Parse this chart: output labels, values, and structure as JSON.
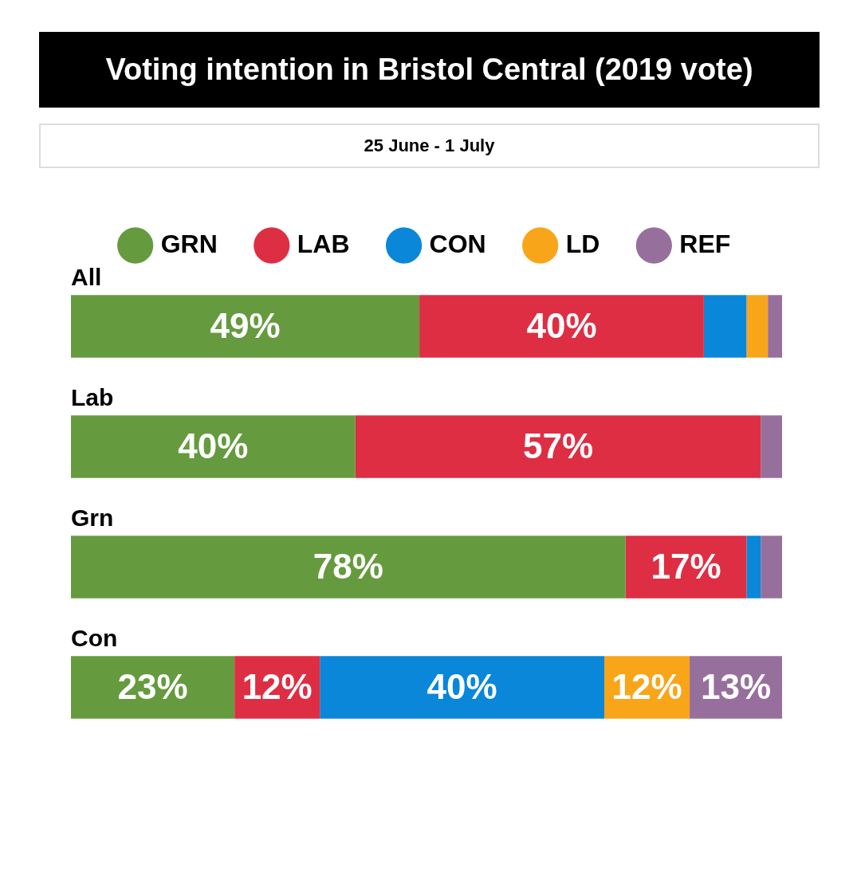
{
  "chart_data": {
    "type": "bar",
    "orientation": "horizontal",
    "stacked": true,
    "title": "Voting intention in Bristol Central (2019 vote)",
    "subtitle": "25 June - 1 July",
    "categories": [
      "All",
      "Lab",
      "Grn",
      "Con"
    ],
    "xlim": [
      0,
      100
    ],
    "tick_labels": false,
    "grid": false,
    "legend": "top",
    "series": [
      {
        "name": "GRN",
        "color": "#659b3e",
        "values": [
          49,
          40,
          78,
          23
        ],
        "value_labels": [
          "49%",
          "40%",
          "78%",
          "23%"
        ]
      },
      {
        "name": "LAB",
        "color": "#de2e43",
        "values": [
          40,
          57,
          17,
          12
        ],
        "value_labels": [
          "40%",
          "57%",
          "17%",
          "12%"
        ]
      },
      {
        "name": "CON",
        "color": "#0a87d9",
        "values": [
          6,
          null,
          2,
          40
        ],
        "value_labels": [
          null,
          null,
          null,
          "40%"
        ]
      },
      {
        "name": "LD",
        "color": "#f9a51a",
        "values": [
          3,
          null,
          null,
          12
        ],
        "value_labels": [
          null,
          null,
          null,
          "12%"
        ]
      },
      {
        "name": "REF",
        "color": "#976f9c",
        "values": [
          2,
          3,
          3,
          13
        ],
        "value_labels": [
          null,
          null,
          null,
          "13%"
        ]
      }
    ]
  }
}
